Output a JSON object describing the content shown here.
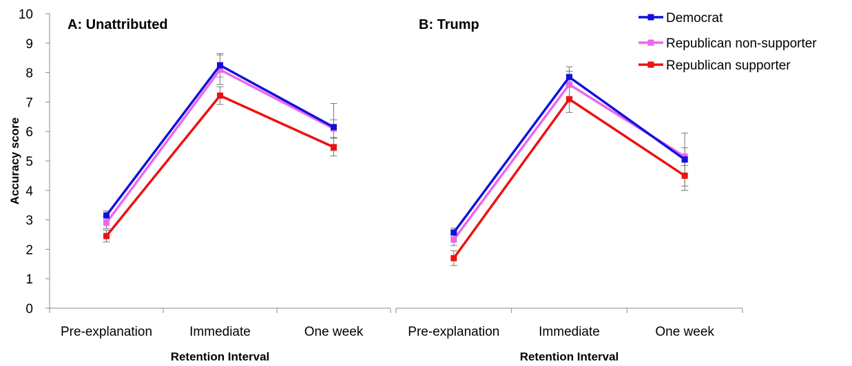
{
  "chart_data": {
    "type": "line",
    "ylabel": "Accuracy score",
    "ylim": [
      0,
      10
    ],
    "yticks": [
      0,
      1,
      2,
      3,
      4,
      5,
      6,
      7,
      8,
      9,
      10
    ],
    "legend_position": "top-right",
    "legend": [
      {
        "name": "Democrat",
        "color": "#1111dd"
      },
      {
        "name": "Republican non-supporter",
        "color": "#ee66ee"
      },
      {
        "name": "Republican supporter",
        "color": "#ee1111"
      }
    ],
    "panels": [
      {
        "title": "A: Unattributed",
        "xlabel": "Retention Interval",
        "categories": [
          "Pre-explanation",
          "Immediate",
          "One week"
        ],
        "series": [
          {
            "name": "Democrat",
            "color": "#1111dd",
            "values": [
              3.15,
              8.25,
              6.15
            ],
            "errors": [
              0.15,
              0.4,
              0.8
            ]
          },
          {
            "name": "Republican non-supporter",
            "color": "#ee66ee",
            "values": [
              2.9,
              8.1,
              6.1
            ],
            "errors": [
              0.2,
              0.5,
              0.3
            ]
          },
          {
            "name": "Republican supporter",
            "color": "#ee1111",
            "values": [
              2.45,
              7.22,
              5.47
            ],
            "errors": [
              0.2,
              0.3,
              0.3
            ]
          }
        ]
      },
      {
        "title": "B: Trump",
        "xlabel": "Retention Interval",
        "categories": [
          "Pre-explanation",
          "Immediate",
          "One week"
        ],
        "series": [
          {
            "name": "Democrat",
            "color": "#1111dd",
            "values": [
              2.57,
              7.85,
              5.05
            ],
            "errors": [
              0.15,
              0.35,
              0.9
            ]
          },
          {
            "name": "Republican non-supporter",
            "color": "#ee66ee",
            "values": [
              2.33,
              7.6,
              5.15
            ],
            "errors": [
              0.2,
              0.45,
              0.3
            ]
          },
          {
            "name": "Republican supporter",
            "color": "#ee1111",
            "values": [
              1.7,
              7.1,
              4.5
            ],
            "errors": [
              0.25,
              0.45,
              0.5
            ]
          }
        ]
      }
    ]
  }
}
